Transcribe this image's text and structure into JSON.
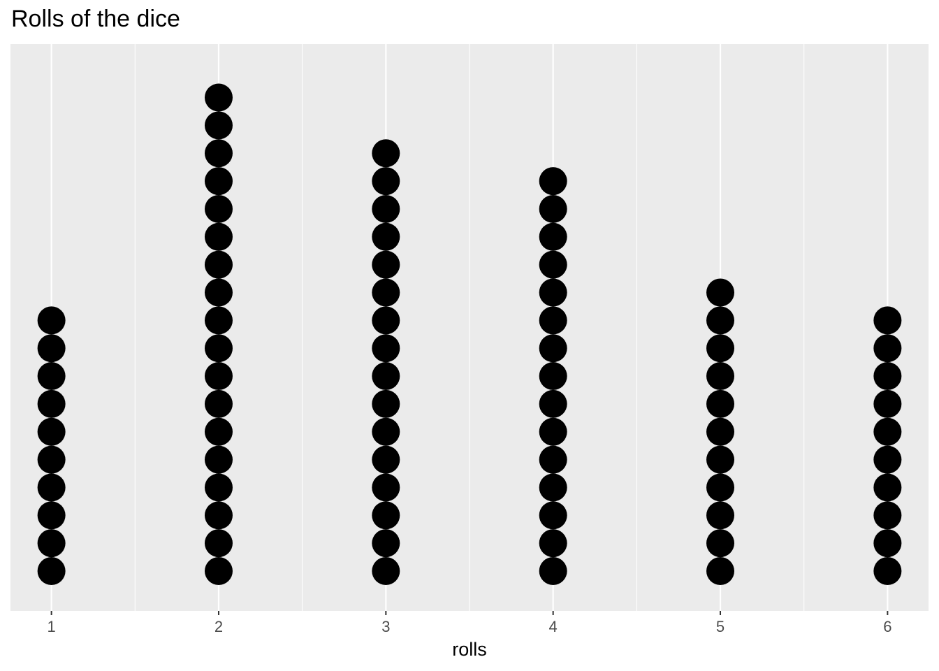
{
  "chart_data": {
    "type": "dotplot",
    "title": "Rolls of the dice",
    "xlabel": "rolls",
    "ylabel": "",
    "x_ticks": [
      "1",
      "2",
      "3",
      "4",
      "5",
      "6"
    ],
    "categories": [
      1,
      2,
      3,
      4,
      5,
      6
    ],
    "values": [
      10,
      18,
      16,
      15,
      11,
      10
    ],
    "grid": true,
    "panel_background": "#EBEBEB",
    "grid_color": "#FFFFFF",
    "dot_color": "#000000",
    "tick_label_color": "#4D4D4D"
  }
}
